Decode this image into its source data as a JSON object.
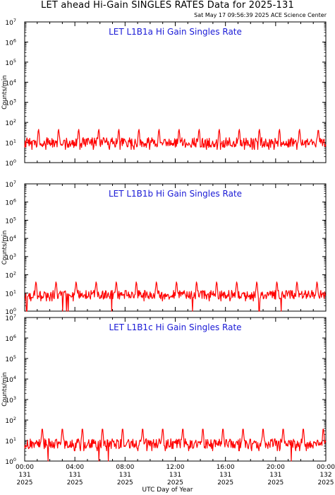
{
  "header": {
    "title": "LET ahead Hi-Gain SINGLES RATES Data for 2025-131",
    "timestamp": "Sat May 17 09:56:39 2025 ACE Science Center"
  },
  "xaxis_label": "UTC Day of Year",
  "colors": {
    "series": "#ff0000",
    "panel_title": "#1a1ad6",
    "axes": "#000000"
  },
  "chart_data": [
    {
      "type": "line",
      "title": "LET L1B1a Hi Gain Singles Rate",
      "ylabel": "Counts/min",
      "xlabel": "UTC Day of Year",
      "yscale": "log",
      "ylim": [
        1,
        10000000
      ],
      "xlim_hours": [
        0,
        24
      ],
      "x_ticks": [
        {
          "time": "00:00",
          "day": "131",
          "year": "2025"
        },
        {
          "time": "04:00",
          "day": "131",
          "year": "2025"
        },
        {
          "time": "08:00",
          "day": "131",
          "year": "2025"
        },
        {
          "time": "12:00",
          "day": "131",
          "year": "2025"
        },
        {
          "time": "16:00",
          "day": "131",
          "year": "2025"
        },
        {
          "time": "20:00",
          "day": "131",
          "year": "2025"
        },
        {
          "time": "00:00",
          "day": "132",
          "year": "2025"
        }
      ],
      "y_ticks": [
        "10^0",
        "10^1",
        "10^2",
        "10^3",
        "10^4",
        "10^5",
        "10^6",
        "10^7"
      ],
      "series": [
        {
          "baseline": 10,
          "spike_peak": 50,
          "spike_period_hours": 1.6,
          "spike_times_hours": [
            1.1,
            2.7,
            4.3,
            5.9,
            7.5,
            9.1,
            10.7,
            12.3,
            13.9,
            15.5,
            17.1,
            18.7,
            20.3,
            21.9,
            23.4
          ]
        }
      ]
    },
    {
      "type": "line",
      "title": "LET L1B1b Hi Gain Singles Rate",
      "ylabel": "Counts/min",
      "xlabel": "UTC Day of Year",
      "yscale": "log",
      "ylim": [
        1,
        10000000
      ],
      "xlim_hours": [
        0,
        24
      ],
      "x_ticks": [
        {
          "time": "00:00",
          "day": "131",
          "year": "2025"
        },
        {
          "time": "04:00",
          "day": "131",
          "year": "2025"
        },
        {
          "time": "08:00",
          "day": "131",
          "year": "2025"
        },
        {
          "time": "12:00",
          "day": "131",
          "year": "2025"
        },
        {
          "time": "16:00",
          "day": "131",
          "year": "2025"
        },
        {
          "time": "20:00",
          "day": "131",
          "year": "2025"
        },
        {
          "time": "00:00",
          "day": "132",
          "year": "2025"
        }
      ],
      "y_ticks": [
        "10^0",
        "10^1",
        "10^2",
        "10^3",
        "10^4",
        "10^5",
        "10^6",
        "10^7"
      ],
      "series": [
        {
          "baseline": 8,
          "spike_peak": 45,
          "spike_period_hours": 1.6,
          "spike_times_hours": [
            0.9,
            2.5,
            4.1,
            5.7,
            7.3,
            8.9,
            10.5,
            12.1,
            13.7,
            15.3,
            16.9,
            18.5,
            20.1,
            21.7,
            23.3
          ]
        }
      ]
    },
    {
      "type": "line",
      "title": "LET L1B1c Hi Gain Singles Rate",
      "ylabel": "Counts/min",
      "xlabel": "UTC Day of Year",
      "yscale": "log",
      "ylim": [
        1,
        10000000
      ],
      "xlim_hours": [
        0,
        24
      ],
      "x_ticks": [
        {
          "time": "00:00",
          "day": "131",
          "year": "2025"
        },
        {
          "time": "04:00",
          "day": "131",
          "year": "2025"
        },
        {
          "time": "08:00",
          "day": "131",
          "year": "2025"
        },
        {
          "time": "12:00",
          "day": "131",
          "year": "2025"
        },
        {
          "time": "16:00",
          "day": "131",
          "year": "2025"
        },
        {
          "time": "20:00",
          "day": "131",
          "year": "2025"
        },
        {
          "time": "00:00",
          "day": "132",
          "year": "2025"
        }
      ],
      "y_ticks": [
        "10^0",
        "10^1",
        "10^2",
        "10^3",
        "10^4",
        "10^5",
        "10^6",
        "10^7"
      ],
      "series": [
        {
          "baseline": 7,
          "spike_peak": 45,
          "spike_period_hours": 1.6,
          "spike_times_hours": [
            1.4,
            3.0,
            4.6,
            6.2,
            7.8,
            9.4,
            11.0,
            12.6,
            14.2,
            15.8,
            17.4,
            19.0,
            20.6,
            22.2,
            23.8
          ]
        }
      ]
    }
  ]
}
